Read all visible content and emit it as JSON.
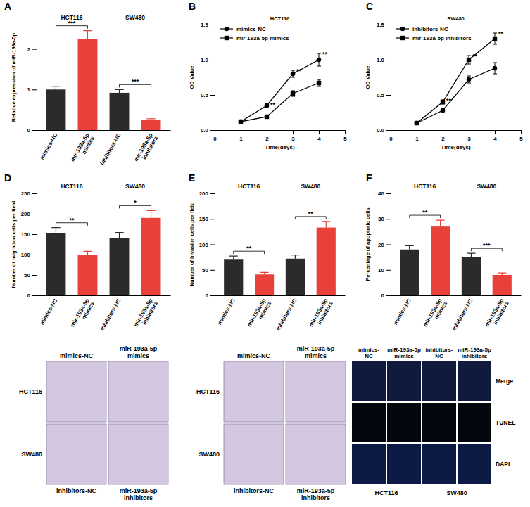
{
  "chart_data": [
    {
      "type": "bar",
      "panel": "A",
      "y_label": "Relative expression of miR-193a-5p",
      "categories": [
        "mimics-NC",
        "mir-193a-5p mimics",
        "inhibitors-NC",
        "mir-193a-5p inhibitors"
      ],
      "values": [
        1.0,
        2.25,
        0.92,
        0.25
      ],
      "errors": [
        0.08,
        0.2,
        0.08,
        0.03
      ],
      "colors": [
        "#2b2b2b",
        "#e8413a",
        "#2b2b2b",
        "#e8413a"
      ],
      "groups": [
        {
          "label": "HCT116",
          "significance": "***"
        },
        {
          "label": "SW480",
          "significance": "***"
        }
      ],
      "ylim": [
        0,
        2.6
      ],
      "yticks": [
        0,
        1,
        2
      ]
    },
    {
      "type": "line",
      "panel": "B",
      "title": "HCT116",
      "x_label": "Time(days)",
      "y_label": "OD Value",
      "x": [
        1,
        2,
        3,
        4
      ],
      "series": [
        {
          "name": "mimics-NC",
          "color": "#000000",
          "marker": "circle",
          "values": [
            0.12,
            0.35,
            0.8,
            1.0
          ],
          "errors": [
            0.01,
            0.02,
            0.05,
            0.09
          ]
        },
        {
          "name": "mir-193a-5p mimics",
          "color": "#000000",
          "marker": "square",
          "values": [
            0.12,
            0.19,
            0.52,
            0.67
          ],
          "errors": [
            0.01,
            0.02,
            0.04,
            0.05
          ]
        }
      ],
      "significance": [
        null,
        "**",
        "**",
        "**"
      ],
      "xlim": [
        0,
        5
      ],
      "xticks": [
        0,
        1,
        2,
        3,
        4,
        5
      ],
      "ylim": [
        0,
        1.5
      ],
      "yticks": [
        {
          "value": 0,
          "label": "0.0"
        },
        0.5,
        {
          "value": 1,
          "label": "1.0"
        },
        1.5
      ],
      "legend": "top-left"
    },
    {
      "type": "line",
      "panel": "C",
      "title": "SW480",
      "x_label": "Time(days)",
      "y_label": "OD Value",
      "x": [
        1,
        2,
        3,
        4
      ],
      "series": [
        {
          "name": "inhibitors-NC",
          "color": "#000000",
          "marker": "circle",
          "values": [
            0.1,
            0.28,
            0.72,
            0.88
          ],
          "errors": [
            0.01,
            0.02,
            0.05,
            0.08
          ]
        },
        {
          "name": "mir-193a-5p inhibitors",
          "color": "#000000",
          "marker": "square",
          "values": [
            0.1,
            0.4,
            1.0,
            1.3
          ],
          "errors": [
            0.01,
            0.03,
            0.06,
            0.08
          ]
        }
      ],
      "significance": [
        null,
        "**",
        "**",
        "**"
      ],
      "xlim": [
        0,
        5
      ],
      "xticks": [
        0,
        1,
        2,
        3,
        4,
        5
      ],
      "ylim": [
        0,
        1.5
      ],
      "yticks": [
        {
          "value": 0,
          "label": "0.0"
        },
        0.5,
        {
          "value": 1,
          "label": "1.0"
        },
        1.5
      ],
      "legend": "top-left"
    },
    {
      "type": "bar",
      "panel": "D",
      "y_label": "Number of migration cells per field",
      "categories": [
        "mimics-NC",
        "mir-193a-5p mimics",
        "inhibitors-NC",
        "mir-193a-5p inhibitors"
      ],
      "values": [
        152,
        99,
        140,
        190
      ],
      "errors": [
        14,
        9,
        14,
        18
      ],
      "colors": [
        "#2b2b2b",
        "#e8413a",
        "#2b2b2b",
        "#e8413a"
      ],
      "groups": [
        {
          "label": "HCT116",
          "significance": "**"
        },
        {
          "label": "SW480",
          "significance": "*"
        }
      ],
      "ylim": [
        0,
        250
      ],
      "yticks": [
        0,
        50,
        100,
        150,
        200,
        250
      ]
    },
    {
      "type": "bar",
      "panel": "E",
      "y_label": "Number of invasion cells per field",
      "categories": [
        "mimics-NC",
        "mir-193a-5p mimics",
        "inhibitors-NC",
        "mir-193a-5p inhibitors"
      ],
      "values": [
        70,
        41,
        72,
        133
      ],
      "errors": [
        7,
        4,
        7,
        12
      ],
      "colors": [
        "#2b2b2b",
        "#e8413a",
        "#2b2b2b",
        "#e8413a"
      ],
      "groups": [
        {
          "label": "HCT116",
          "significance": "**"
        },
        {
          "label": "SW480",
          "significance": "**"
        }
      ],
      "ylim": [
        0,
        200
      ],
      "yticks": [
        0,
        50,
        100,
        150,
        200
      ]
    },
    {
      "type": "bar",
      "panel": "F",
      "y_label": "Percentage of apoptotic cells",
      "categories": [
        "mimics-NC",
        "mir-193a-5p mimics",
        "inhibitors-NC",
        "mir-193a-5p inhibitors"
      ],
      "values": [
        18,
        27,
        15,
        8
      ],
      "errors": [
        1.5,
        2.5,
        1.5,
        0.8
      ],
      "colors": [
        "#2b2b2b",
        "#e8413a",
        "#2b2b2b",
        "#e8413a"
      ],
      "groups": [
        {
          "label": "HCT116",
          "significance": "**"
        },
        {
          "label": "SW480",
          "significance": "***"
        }
      ],
      "ylim": [
        0,
        40
      ],
      "yticks": [
        0,
        10,
        20,
        30,
        40
      ]
    }
  ],
  "images": [
    {
      "type": "transwell",
      "top_labels": [
        "mimics-NC",
        "miR-193a-5p mimics"
      ],
      "bottom_labels": [
        "inhibitors-NC",
        "miR-193a-5p inhibitors"
      ],
      "row_labels": [
        "HCT116",
        "SW480"
      ]
    },
    {
      "type": "transwell",
      "top_labels": [
        "mimics-NC",
        "miR-193a-5p mimics"
      ],
      "bottom_labels": [
        "inhibitors-NC",
        "miR-193a-5p inhibitors"
      ],
      "row_labels": [
        "HCT116",
        "SW480"
      ]
    },
    {
      "type": "fluorescence",
      "column_labels": [
        "mimics-NC",
        "miR-193a-5p mimics",
        "inhibitors-NC",
        "miR-193a-5p inhibitors"
      ],
      "row_labels": [
        "Merge",
        "TUNEL",
        "DAPI"
      ],
      "group_labels": [
        "HCT116",
        "SW480"
      ]
    }
  ]
}
